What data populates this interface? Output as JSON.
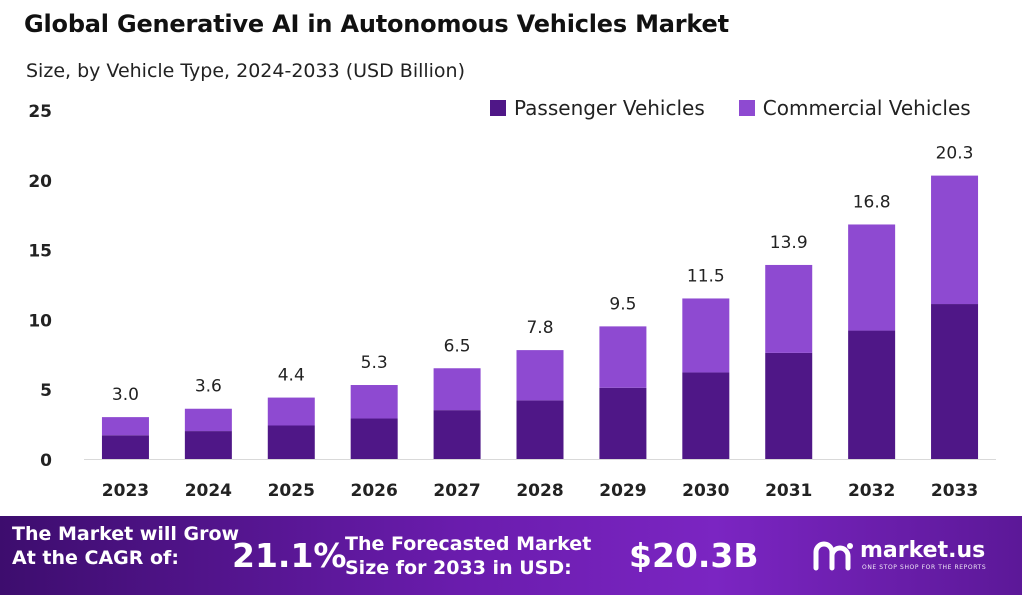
{
  "chart_data": {
    "type": "bar",
    "stacked": true,
    "title": "Global Generative AI in Autonomous Vehicles Market",
    "subtitle": "Size, by Vehicle Type, 2024-2033 (USD Billion)",
    "categories": [
      "2023",
      "2024",
      "2025",
      "2026",
      "2027",
      "2028",
      "2029",
      "2030",
      "2031",
      "2032",
      "2033"
    ],
    "series": [
      {
        "name": "Passenger Vehicles",
        "color": "#4f1787",
        "values": [
          1.7,
          2.0,
          2.4,
          2.9,
          3.5,
          4.2,
          5.1,
          6.2,
          7.6,
          9.2,
          11.1
        ]
      },
      {
        "name": "Commercial Vehicles",
        "color": "#8e4ad1",
        "values": [
          1.3,
          1.6,
          2.0,
          2.4,
          3.0,
          3.6,
          4.4,
          5.3,
          6.3,
          7.6,
          9.2
        ]
      }
    ],
    "totals": [
      "3.0",
      "3.6",
      "4.4",
      "5.3",
      "6.5",
      "7.8",
      "9.5",
      "11.5",
      "13.9",
      "16.8",
      "20.3"
    ],
    "yticks": [
      "0",
      "5",
      "10",
      "15",
      "20",
      "25"
    ],
    "ylim": [
      0,
      25
    ],
    "grid": false,
    "legend_position": "top-right"
  },
  "footer": {
    "cagr_label": "The Market will Grow\nAt the CAGR of:",
    "cagr_value": "21.1%",
    "forecast_label": "The Forecasted Market\nSize for 2033 in USD:",
    "forecast_value": "$20.3B",
    "brand": "market.us",
    "tagline": "ONE STOP SHOP FOR THE REPORTS",
    "logo_icon": "market-us-logo-icon"
  }
}
